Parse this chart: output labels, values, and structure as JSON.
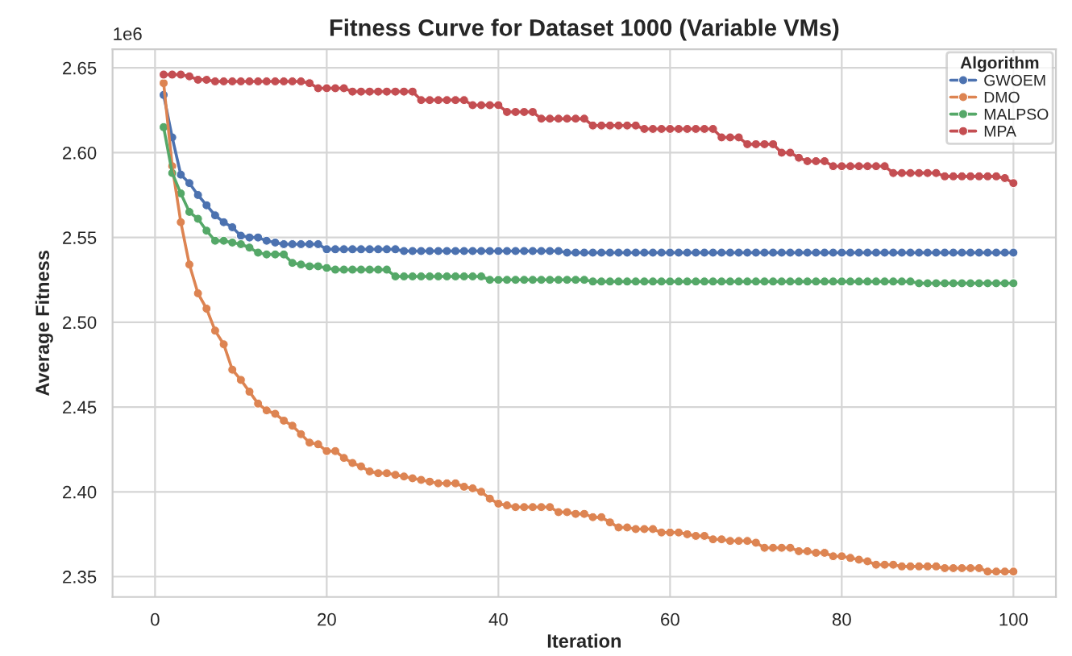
{
  "chart_data": {
    "type": "line",
    "title": "Fitness Curve for Dataset 1000 (Variable VMs)",
    "xlabel": "Iteration",
    "ylabel": "Average Fitness",
    "legend_title": "Algorithm",
    "annotations": [
      "1e6"
    ],
    "x": [
      1,
      2,
      3,
      4,
      5,
      6,
      7,
      8,
      9,
      10,
      11,
      12,
      13,
      14,
      15,
      16,
      17,
      18,
      19,
      20,
      21,
      22,
      23,
      24,
      25,
      26,
      27,
      28,
      29,
      30,
      31,
      32,
      33,
      34,
      35,
      36,
      37,
      38,
      39,
      40,
      41,
      42,
      43,
      44,
      45,
      46,
      47,
      48,
      49,
      50,
      51,
      52,
      53,
      54,
      55,
      56,
      57,
      58,
      59,
      60,
      61,
      62,
      63,
      64,
      65,
      66,
      67,
      68,
      69,
      70,
      71,
      72,
      73,
      74,
      75,
      76,
      77,
      78,
      79,
      80,
      81,
      82,
      83,
      84,
      85,
      86,
      87,
      88,
      89,
      90,
      91,
      92,
      93,
      94,
      95,
      96,
      97,
      98,
      99,
      100
    ],
    "xlim": [
      -4.95,
      104.95
    ],
    "xticks": [
      0,
      20,
      40,
      60,
      80,
      100
    ],
    "ylim": [
      2.338,
      2.661
    ],
    "yticks": [
      2.35,
      {
        "value": 2.4,
        "label": "2.40"
      },
      2.45,
      {
        "value": 2.5,
        "label": "2.50"
      },
      2.55,
      {
        "value": 2.6,
        "label": "2.60"
      },
      2.65
    ],
    "grid": true,
    "legend": "top right",
    "marker": "circle",
    "line_style": "solid",
    "series": [
      {
        "name": "GWOEM",
        "color": "#4c72b0",
        "values": [
          2.634,
          2.609,
          2.587,
          2.582,
          2.575,
          2.569,
          2.563,
          2.559,
          2.556,
          2.551,
          2.55,
          2.55,
          2.548,
          2.547,
          2.546,
          2.546,
          2.546,
          2.546,
          2.546,
          2.543,
          2.543,
          2.543,
          2.543,
          2.543,
          2.543,
          2.543,
          2.543,
          2.543,
          2.542,
          2.542,
          2.542,
          2.542,
          2.542,
          2.542,
          2.542,
          2.542,
          2.542,
          2.542,
          2.542,
          2.542,
          2.542,
          2.542,
          2.542,
          2.542,
          2.542,
          2.542,
          2.542,
          2.541,
          2.541,
          2.541,
          2.541,
          2.541,
          2.541,
          2.541,
          2.541,
          2.541,
          2.541,
          2.541,
          2.541,
          2.541,
          2.541,
          2.541,
          2.541,
          2.541,
          2.541,
          2.541,
          2.541,
          2.541,
          2.541,
          2.541,
          2.541,
          2.541,
          2.541,
          2.541,
          2.541,
          2.541,
          2.541,
          2.541,
          2.541,
          2.541,
          2.541,
          2.541,
          2.541,
          2.541,
          2.541,
          2.541,
          2.541,
          2.541,
          2.541,
          2.541,
          2.541,
          2.541,
          2.541,
          2.541,
          2.541,
          2.541,
          2.541,
          2.541,
          2.541,
          2.541
        ]
      },
      {
        "name": "DMO",
        "color": "#dd8452",
        "values": [
          2.641,
          2.592,
          2.559,
          2.534,
          2.517,
          2.508,
          2.495,
          2.487,
          2.472,
          2.466,
          2.459,
          2.452,
          2.448,
          2.446,
          2.442,
          2.439,
          2.434,
          2.429,
          2.428,
          2.424,
          2.424,
          2.42,
          2.417,
          2.415,
          2.412,
          2.411,
          2.411,
          2.41,
          2.409,
          2.408,
          2.407,
          2.406,
          2.405,
          2.405,
          2.405,
          2.403,
          2.402,
          2.4,
          2.396,
          2.393,
          2.392,
          2.391,
          2.391,
          2.391,
          2.391,
          2.391,
          2.388,
          2.388,
          2.387,
          2.387,
          2.385,
          2.385,
          2.382,
          2.379,
          2.379,
          2.378,
          2.378,
          2.378,
          2.376,
          2.376,
          2.376,
          2.375,
          2.374,
          2.374,
          2.372,
          2.372,
          2.371,
          2.371,
          2.371,
          2.37,
          2.367,
          2.367,
          2.367,
          2.367,
          2.365,
          2.365,
          2.364,
          2.364,
          2.362,
          2.362,
          2.361,
          2.36,
          2.359,
          2.357,
          2.357,
          2.357,
          2.356,
          2.356,
          2.356,
          2.356,
          2.356,
          2.355,
          2.355,
          2.355,
          2.355,
          2.355,
          2.353,
          2.353,
          2.353,
          2.353
        ]
      },
      {
        "name": "MALPSO",
        "color": "#55a868",
        "values": [
          2.615,
          2.588,
          2.576,
          2.565,
          2.561,
          2.554,
          2.548,
          2.548,
          2.547,
          2.546,
          2.544,
          2.541,
          2.54,
          2.54,
          2.54,
          2.535,
          2.534,
          2.533,
          2.533,
          2.532,
          2.531,
          2.531,
          2.531,
          2.531,
          2.531,
          2.531,
          2.531,
          2.527,
          2.527,
          2.527,
          2.527,
          2.527,
          2.527,
          2.527,
          2.527,
          2.527,
          2.527,
          2.527,
          2.525,
          2.525,
          2.525,
          2.525,
          2.525,
          2.525,
          2.525,
          2.525,
          2.525,
          2.525,
          2.525,
          2.525,
          2.524,
          2.524,
          2.524,
          2.524,
          2.524,
          2.524,
          2.524,
          2.524,
          2.524,
          2.524,
          2.524,
          2.524,
          2.524,
          2.524,
          2.524,
          2.524,
          2.524,
          2.524,
          2.524,
          2.524,
          2.524,
          2.524,
          2.524,
          2.524,
          2.524,
          2.524,
          2.524,
          2.524,
          2.524,
          2.524,
          2.524,
          2.524,
          2.524,
          2.524,
          2.524,
          2.524,
          2.524,
          2.524,
          2.523,
          2.523,
          2.523,
          2.523,
          2.523,
          2.523,
          2.523,
          2.523,
          2.523,
          2.523,
          2.523,
          2.523
        ]
      },
      {
        "name": "MPA",
        "color": "#c44e52",
        "values": [
          2.646,
          2.646,
          2.646,
          2.645,
          2.643,
          2.643,
          2.642,
          2.642,
          2.642,
          2.642,
          2.642,
          2.642,
          2.642,
          2.642,
          2.642,
          2.642,
          2.642,
          2.641,
          2.638,
          2.638,
          2.638,
          2.638,
          2.636,
          2.636,
          2.636,
          2.636,
          2.636,
          2.636,
          2.636,
          2.636,
          2.631,
          2.631,
          2.631,
          2.631,
          2.631,
          2.631,
          2.628,
          2.628,
          2.628,
          2.628,
          2.624,
          2.624,
          2.624,
          2.624,
          2.62,
          2.62,
          2.62,
          2.62,
          2.62,
          2.62,
          2.616,
          2.616,
          2.616,
          2.616,
          2.616,
          2.616,
          2.614,
          2.614,
          2.614,
          2.614,
          2.614,
          2.614,
          2.614,
          2.614,
          2.614,
          2.609,
          2.609,
          2.609,
          2.605,
          2.605,
          2.605,
          2.605,
          2.6,
          2.6,
          2.597,
          2.595,
          2.595,
          2.595,
          2.592,
          2.592,
          2.592,
          2.592,
          2.592,
          2.592,
          2.592,
          2.588,
          2.588,
          2.588,
          2.588,
          2.588,
          2.588,
          2.586,
          2.586,
          2.586,
          2.586,
          2.586,
          2.586,
          2.586,
          2.585,
          2.582
        ]
      }
    ]
  }
}
